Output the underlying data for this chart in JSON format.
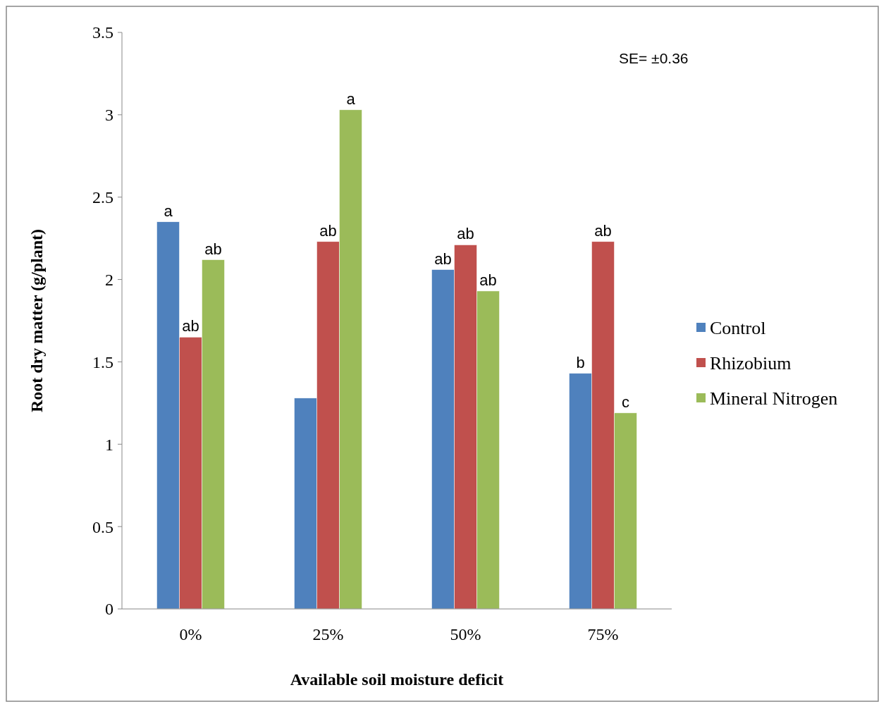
{
  "chart_data": {
    "type": "bar",
    "xlabel": "Available soil moisture deficit",
    "ylabel": "Root dry matter (g/plant)",
    "categories": [
      "0%",
      "25%",
      "50%",
      "75%"
    ],
    "ylim": [
      0,
      3.5
    ],
    "yticks": [
      0,
      0.5,
      1,
      1.5,
      2,
      2.5,
      3,
      3.5
    ],
    "grid": false,
    "legend": "right",
    "annotations": [
      "SE= ±0.36"
    ],
    "series": [
      {
        "name": "Control",
        "color": "#4f81bd",
        "values": [
          2.35,
          1.28,
          2.06,
          1.43
        ],
        "value_labels": [
          "a",
          null,
          "ab",
          "b"
        ]
      },
      {
        "name": "Rhizobium",
        "color": "#c0504d",
        "values": [
          1.65,
          2.23,
          2.21,
          2.23
        ],
        "value_labels": [
          "ab",
          "ab",
          "ab",
          "ab"
        ]
      },
      {
        "name": "Mineral Nitrogen",
        "color": "#9bbb59",
        "values": [
          2.12,
          3.03,
          1.93,
          1.19
        ],
        "value_labels": [
          "ab",
          "a",
          "ab",
          "c"
        ]
      }
    ]
  }
}
